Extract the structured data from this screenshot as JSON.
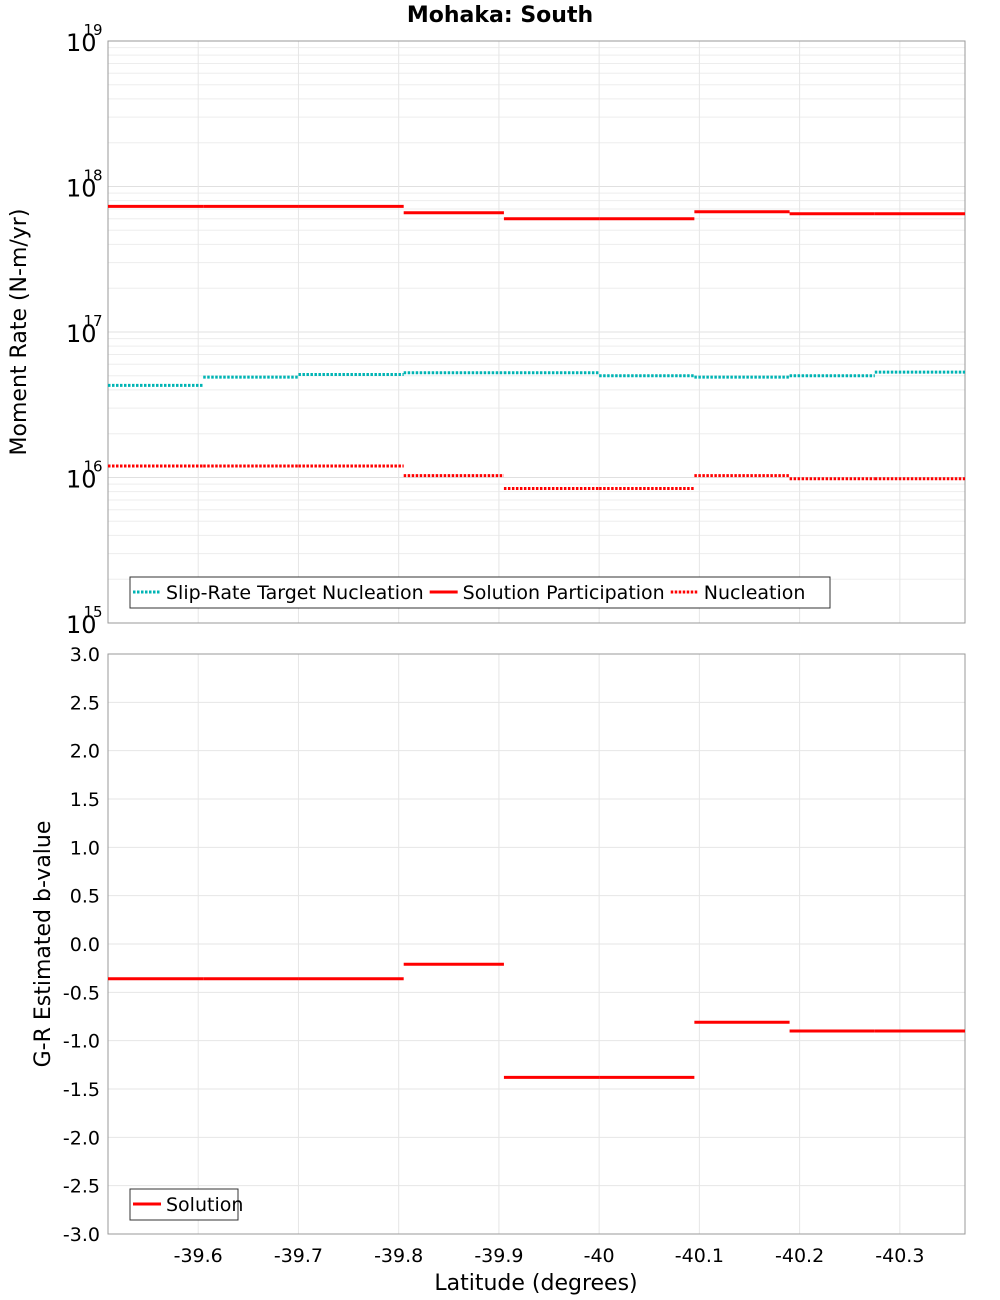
{
  "chart_data": [
    {
      "type": "line",
      "title": "Mohaka: South",
      "xlabel": "",
      "ylabel": "Moment Rate (N-m/yr)",
      "yscale": "log",
      "ylim": [
        1000000000000000.0,
        1e+19
      ],
      "xlim": [
        -39.51,
        -40.365
      ],
      "x_reversed": true,
      "y_ticks": [
        {
          "base": "10",
          "exp": "15",
          "value": 1000000000000000.0
        },
        {
          "base": "10",
          "exp": "16",
          "value": 1e+16
        },
        {
          "base": "10",
          "exp": "17",
          "value": 1e+17
        },
        {
          "base": "10",
          "exp": "18",
          "value": 1e+18
        },
        {
          "base": "10",
          "exp": "19",
          "value": 1e+19
        }
      ],
      "grid": true,
      "legend_position": "bottom-left",
      "series": [
        {
          "name": "Slip-Rate Target Nucleation",
          "color": "#00b4b4",
          "style": "dotted",
          "segments": [
            {
              "x0": -39.51,
              "x1": -39.605,
              "y": 4.3e+16
            },
            {
              "x0": -39.605,
              "x1": -39.7,
              "y": 4.9e+16
            },
            {
              "x0": -39.7,
              "x1": -39.805,
              "y": 5.1e+16
            },
            {
              "x0": -39.805,
              "x1": -39.905,
              "y": 5.25e+16
            },
            {
              "x0": -39.905,
              "x1": -40.0,
              "y": 5.25e+16
            },
            {
              "x0": -40.0,
              "x1": -40.095,
              "y": 5e+16
            },
            {
              "x0": -40.095,
              "x1": -40.19,
              "y": 4.9e+16
            },
            {
              "x0": -40.19,
              "x1": -40.275,
              "y": 5e+16
            },
            {
              "x0": -40.275,
              "x1": -40.365,
              "y": 5.3e+16
            }
          ]
        },
        {
          "name": "Solution Participation",
          "color": "#ff0000",
          "style": "solid",
          "segments": [
            {
              "x0": -39.51,
              "x1": -39.605,
              "y": 7.3e+17
            },
            {
              "x0": -39.605,
              "x1": -39.7,
              "y": 7.3e+17
            },
            {
              "x0": -39.7,
              "x1": -39.805,
              "y": 7.3e+17
            },
            {
              "x0": -39.805,
              "x1": -39.905,
              "y": 6.6e+17
            },
            {
              "x0": -39.905,
              "x1": -40.0,
              "y": 6e+17
            },
            {
              "x0": -40.0,
              "x1": -40.095,
              "y": 6e+17
            },
            {
              "x0": -40.095,
              "x1": -40.19,
              "y": 6.7e+17
            },
            {
              "x0": -40.19,
              "x1": -40.275,
              "y": 6.5e+17
            },
            {
              "x0": -40.275,
              "x1": -40.365,
              "y": 6.5e+17
            }
          ]
        },
        {
          "name": "Nucleation",
          "color": "#ff0000",
          "style": "dotted",
          "segments": [
            {
              "x0": -39.51,
              "x1": -39.605,
              "y": 1.2e+16
            },
            {
              "x0": -39.605,
              "x1": -39.7,
              "y": 1.2e+16
            },
            {
              "x0": -39.7,
              "x1": -39.805,
              "y": 1.2e+16
            },
            {
              "x0": -39.805,
              "x1": -39.905,
              "y": 1.03e+16
            },
            {
              "x0": -39.905,
              "x1": -40.0,
              "y": 8400000000000000.0
            },
            {
              "x0": -40.0,
              "x1": -40.095,
              "y": 8400000000000000.0
            },
            {
              "x0": -40.095,
              "x1": -40.19,
              "y": 1.03e+16
            },
            {
              "x0": -40.19,
              "x1": -40.275,
              "y": 9800000000000000.0
            },
            {
              "x0": -40.275,
              "x1": -40.365,
              "y": 9800000000000000.0
            }
          ]
        }
      ]
    },
    {
      "type": "line",
      "title": "",
      "xlabel": "Latitude (degrees)",
      "ylabel": "G-R Estimated b-value",
      "ylim": [
        -3.0,
        3.0
      ],
      "xlim": [
        -39.51,
        -40.365
      ],
      "x_reversed": true,
      "x_tick_labels": [
        "-39.6",
        "-39.7",
        "-39.8",
        "-39.9",
        "-40",
        "-40.1",
        "-40.2",
        "-40.3"
      ],
      "x_tick_values": [
        -39.6,
        -39.7,
        -39.8,
        -39.9,
        -40.0,
        -40.1,
        -40.2,
        -40.3
      ],
      "y_tick_labels": [
        "3.0",
        "2.5",
        "2.0",
        "1.5",
        "1.0",
        "0.5",
        "0.0",
        "-0.5",
        "-1.0",
        "-1.5",
        "-2.0",
        "-2.5",
        "-3.0"
      ],
      "y_tick_values": [
        3.0,
        2.5,
        2.0,
        1.5,
        1.0,
        0.5,
        0.0,
        -0.5,
        -1.0,
        -1.5,
        -2.0,
        -2.5,
        -3.0
      ],
      "grid": true,
      "legend_position": "bottom-left",
      "series": [
        {
          "name": "Solution",
          "color": "#ff0000",
          "style": "solid",
          "segments": [
            {
              "x0": -39.51,
              "x1": -39.605,
              "y": -0.36
            },
            {
              "x0": -39.605,
              "x1": -39.7,
              "y": -0.36
            },
            {
              "x0": -39.7,
              "x1": -39.805,
              "y": -0.36
            },
            {
              "x0": -39.805,
              "x1": -39.905,
              "y": -0.21
            },
            {
              "x0": -39.905,
              "x1": -40.0,
              "y": -1.38
            },
            {
              "x0": -40.0,
              "x1": -40.095,
              "y": -1.38
            },
            {
              "x0": -40.095,
              "x1": -40.19,
              "y": -0.81
            },
            {
              "x0": -40.19,
              "x1": -40.275,
              "y": -0.9
            },
            {
              "x0": -40.275,
              "x1": -40.365,
              "y": -0.9
            }
          ]
        }
      ]
    }
  ]
}
